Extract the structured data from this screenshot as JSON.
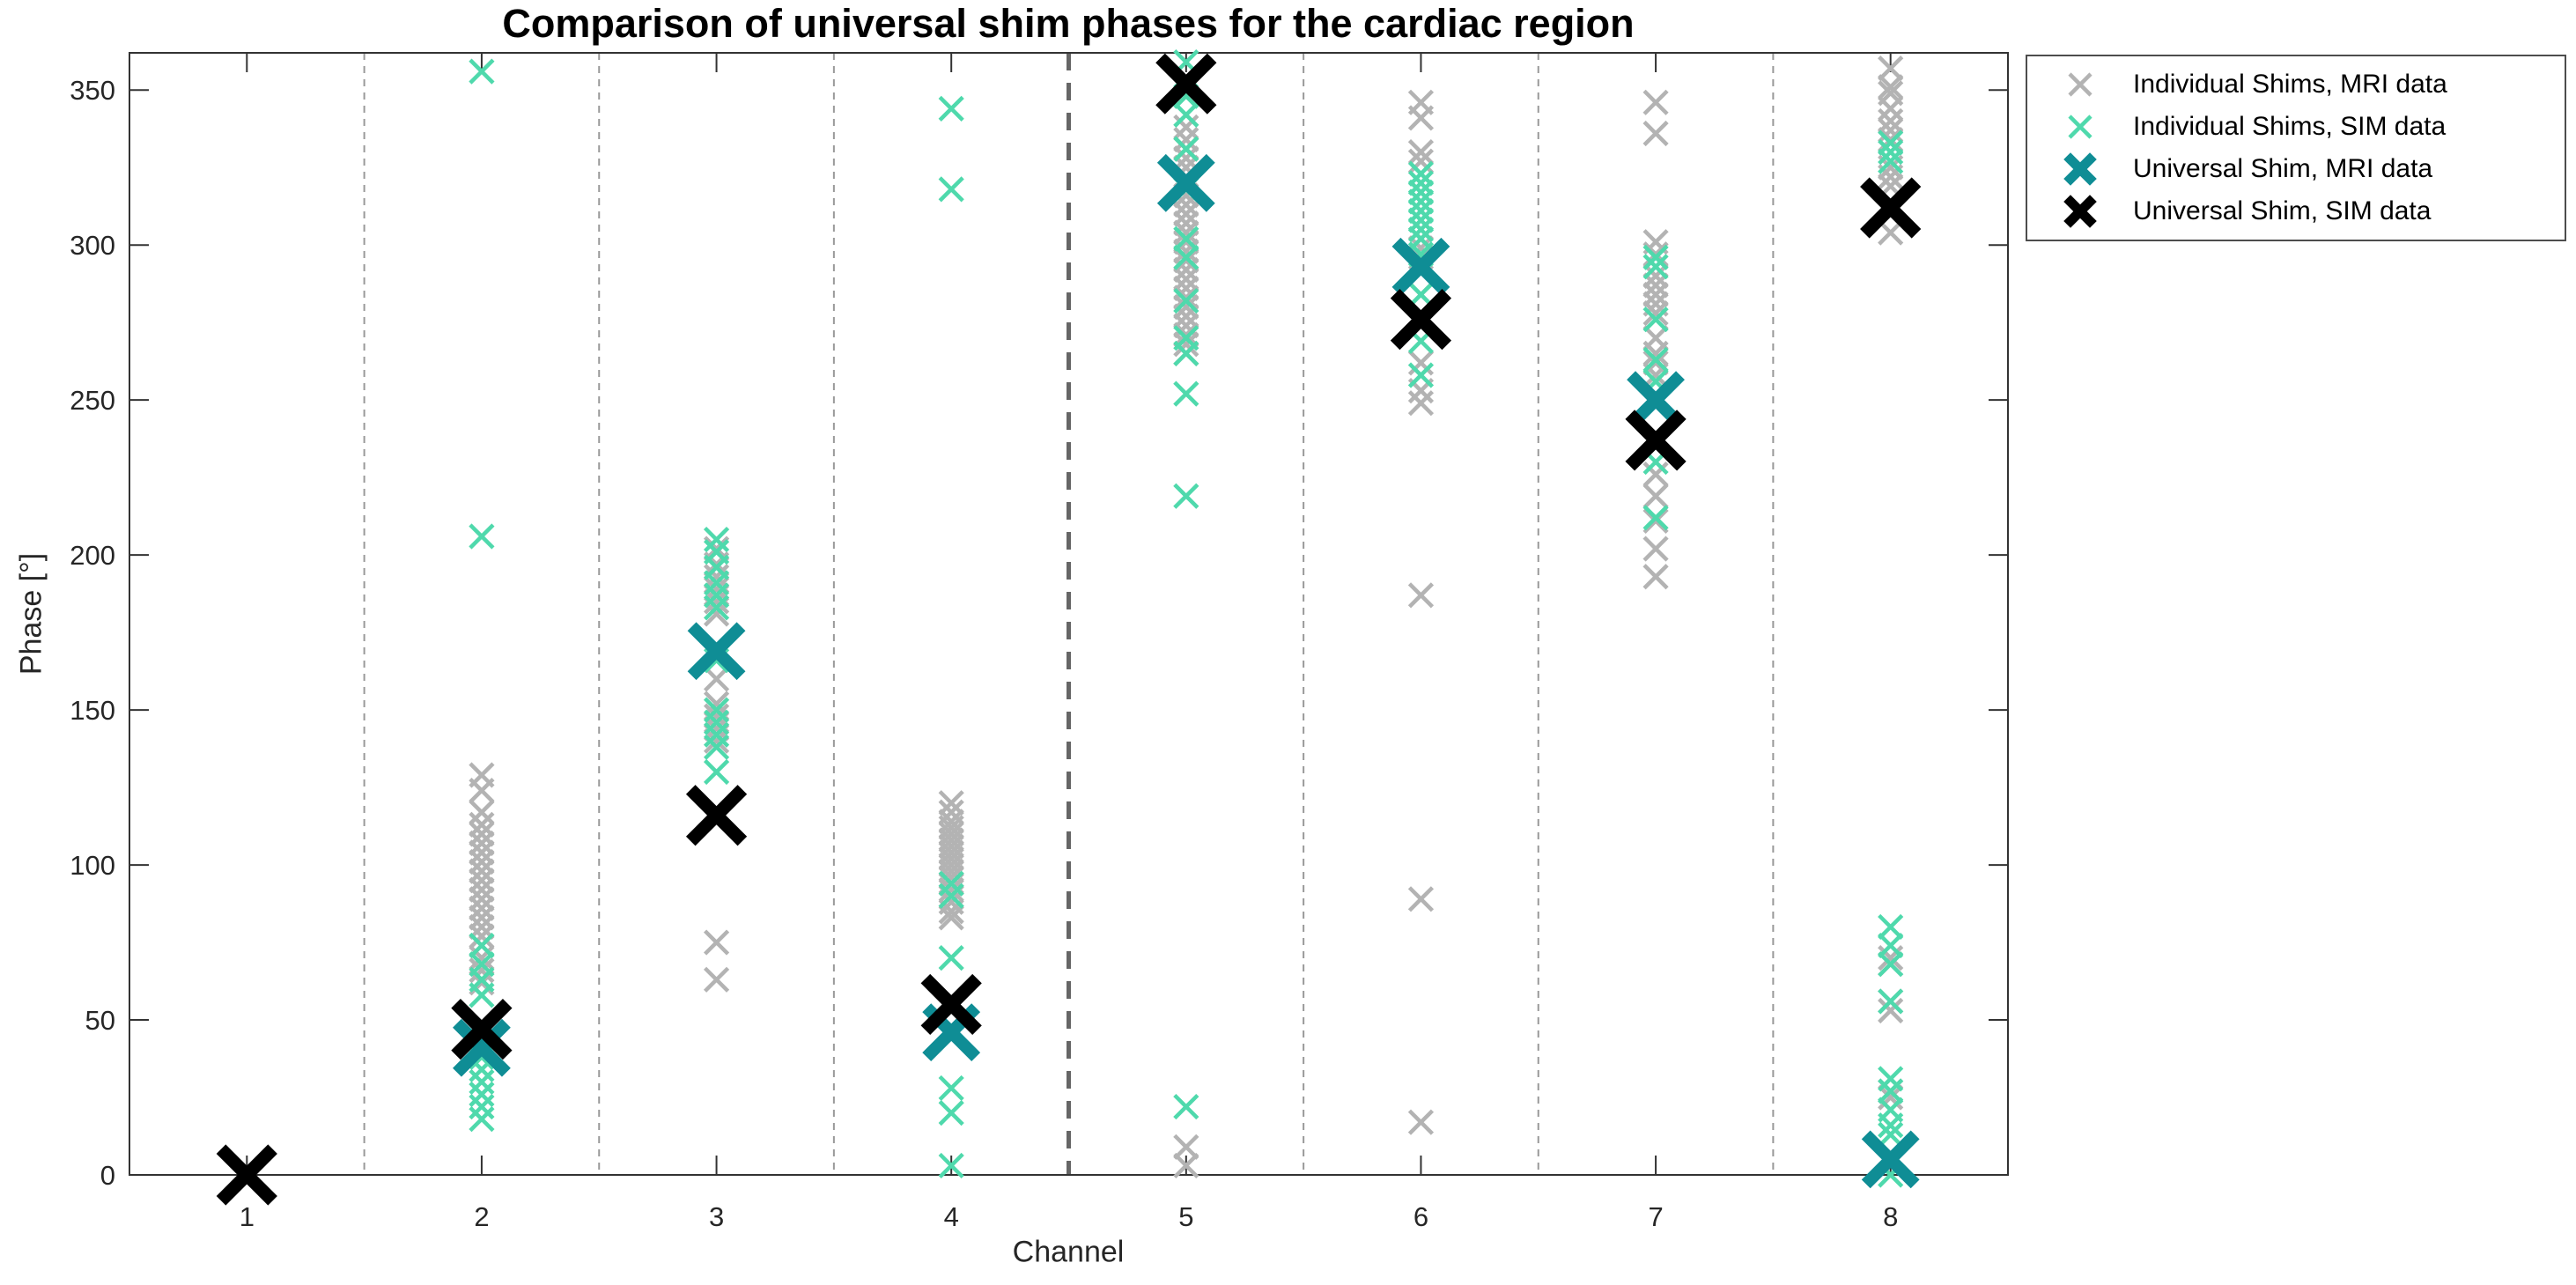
{
  "title": "Comparison of universal shim phases for the cardiac region",
  "axes": {
    "xlabel": "Channel",
    "ylabel": "Phase [°]",
    "x_tick_labels": [
      "1",
      "2",
      "3",
      "4",
      "5",
      "6",
      "7",
      "8"
    ],
    "y_tick_labels": [
      "0",
      "50",
      "100",
      "150",
      "200",
      "250",
      "300",
      "350"
    ]
  },
  "legend": {
    "items": [
      {
        "label": "Individual Shims, MRI data",
        "marker": "x-thin",
        "color": "#b3b3b3"
      },
      {
        "label": "Individual Shims, SIM data",
        "marker": "x-thin",
        "color": "#4fd9ac"
      },
      {
        "label": "Universal Shim, MRI data",
        "marker": "x-bold",
        "color": "#0f8d95"
      },
      {
        "label": "Universal Shim, SIM data",
        "marker": "x-bold",
        "color": "#000000"
      }
    ]
  },
  "colors": {
    "background": "#ffffff",
    "axis": "#333333",
    "tick_label": "#262626",
    "grid_dashed": "#999999",
    "separator_dashed": "#666666",
    "individual_mri": "#b3b3b3",
    "individual_sim": "#4fd9ac",
    "universal_mri": "#0f8d95",
    "universal_sim": "#000000"
  },
  "chart_data": {
    "type": "scatter",
    "title": "Comparison of universal shim phases for the cardiac region",
    "xlabel": "Channel",
    "ylabel": "Phase [°]",
    "xlim": [
      0.5,
      8.5
    ],
    "ylim": [
      0,
      362
    ],
    "x_ticks": [
      1,
      2,
      3,
      4,
      5,
      6,
      7,
      8
    ],
    "y_ticks": [
      0,
      50,
      100,
      150,
      200,
      250,
      300,
      350
    ],
    "grid": "vertical dashed lines at channel boundaries 1.5-7.5, no horizontal grid",
    "separator_x": 4.5,
    "legend_position": "outside-top-right",
    "channels": [
      1,
      2,
      3,
      4,
      5,
      6,
      7,
      8
    ],
    "series": [
      {
        "name": "Individual Shims, MRI data",
        "marker": "x-thin",
        "color": "#b3b3b3",
        "values_by_channel": [
          [
            0
          ],
          [
            129,
            124,
            117,
            113,
            110,
            107,
            104,
            101,
            98,
            95,
            92,
            89,
            86,
            83,
            80,
            77,
            74,
            70,
            66,
            62
          ],
          [
            202,
            197,
            193,
            189,
            185,
            181,
            160,
            152,
            148,
            144,
            140,
            75,
            63
          ],
          [
            120,
            117,
            114,
            112,
            110,
            108,
            106,
            104,
            102,
            100,
            98,
            96,
            94,
            92,
            90,
            88,
            85,
            83
          ],
          [
            338,
            334,
            331,
            328,
            325,
            322,
            319,
            316,
            313,
            310,
            307,
            304,
            301,
            298,
            295,
            292,
            289,
            286,
            283,
            280,
            277,
            274,
            271,
            268,
            265,
            9,
            3
          ],
          [
            346,
            341,
            330,
            327,
            302,
            299,
            296,
            284,
            262,
            253,
            249,
            187,
            89,
            17
          ],
          [
            346,
            336,
            301,
            297,
            290,
            287,
            284,
            281,
            278,
            270,
            265,
            262,
            258,
            226,
            219,
            211,
            202,
            193
          ],
          [
            357,
            351,
            349,
            344,
            340,
            337,
            334,
            325,
            322,
            319,
            304,
            70,
            68,
            56,
            53,
            27,
            25
          ]
        ]
      },
      {
        "name": "Individual Shims, SIM data",
        "marker": "x-thin",
        "color": "#4fd9ac",
        "values_by_channel": [
          [
            0
          ],
          [
            356,
            206,
            74,
            68,
            63,
            58,
            43,
            38,
            34,
            30,
            26,
            22,
            18
          ],
          [
            205,
            201,
            196,
            191,
            187,
            183,
            166,
            150,
            146,
            142,
            138,
            130
          ],
          [
            344,
            318,
            94,
            90,
            70,
            28,
            20,
            3
          ],
          [
            359,
            348,
            342,
            331,
            318,
            302,
            296,
            282,
            270,
            265,
            252,
            219,
            22
          ],
          [
            323,
            320,
            317,
            314,
            311,
            308,
            305,
            302,
            297,
            284,
            269,
            258
          ],
          [
            296,
            293,
            276,
            263,
            256,
            230,
            212
          ],
          [
            333,
            330,
            327,
            80,
            74,
            68,
            56,
            31,
            27,
            21,
            16,
            13,
            0
          ]
        ]
      },
      {
        "name": "Universal Shim, MRI data",
        "marker": "x-bold",
        "color": "#0f8d95",
        "values_by_channel": [
          [
            0
          ],
          [
            41
          ],
          [
            169
          ],
          [
            46
          ],
          [
            320
          ],
          [
            293
          ],
          [
            250
          ],
          [
            5
          ]
        ]
      },
      {
        "name": "Universal Shim, SIM data",
        "marker": "x-bold",
        "color": "#000000",
        "values_by_channel": [
          [
            0
          ],
          [
            47
          ],
          [
            116
          ],
          [
            55
          ],
          [
            352
          ],
          [
            276
          ],
          [
            237
          ],
          [
            312
          ]
        ]
      }
    ]
  }
}
